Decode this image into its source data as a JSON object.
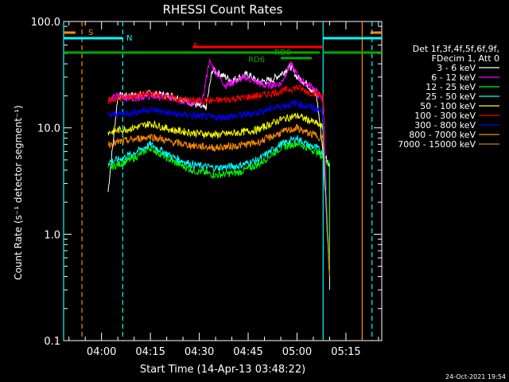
{
  "chart_data": {
    "type": "line",
    "title": "RHESSI Count Rates",
    "xlabel": "Start Time (14-Apr-13 03:48:22)",
    "ylabel": "Count Rate (s⁻¹ detector segment⁻¹)",
    "y_scale": "log",
    "ylim": [
      0.1,
      100
    ],
    "xlim": [
      "03:48:22",
      "05:26:00"
    ],
    "x_ticks": [
      "04:00",
      "04:15",
      "04:30",
      "04:45",
      "05:00",
      "05:15"
    ],
    "y_ticks": [
      "0.1",
      "1.0",
      "10.0",
      "100.0"
    ],
    "timestamp": "24-Oct-2021 19:54",
    "legend": {
      "placement": "right",
      "header": [
        "Det 1f,3f,4f,5f,6f,9f,",
        "FDecim 1, Att 0"
      ]
    },
    "series": [
      {
        "name": "3 - 6 keV",
        "color": "#ffffff",
        "x": [
          "04:02",
          "04:05",
          "04:08",
          "04:15",
          "04:22",
          "04:28",
          "04:32",
          "04:34",
          "04:40",
          "04:45",
          "04:48",
          "04:52",
          "04:55",
          "04:58",
          "05:00",
          "05:03",
          "05:06",
          "05:08",
          "05:10",
          "05:10"
        ],
        "y": [
          2.5,
          20,
          20,
          21,
          20,
          17,
          15,
          35,
          28,
          32,
          27,
          28,
          32,
          38,
          30,
          26,
          20,
          6,
          4.5,
          0.3
        ]
      },
      {
        "name": "6 - 12 keV",
        "color": "#ff00ff",
        "x": [
          "04:02",
          "04:05",
          "04:08",
          "04:15",
          "04:22",
          "04:28",
          "04:31",
          "04:33",
          "04:38",
          "04:44",
          "04:50",
          "04:55",
          "04:58",
          "05:01",
          "05:05",
          "05:08",
          "05:10"
        ],
        "y": [
          18,
          20,
          19,
          20,
          19,
          17,
          18,
          42,
          25,
          30,
          25,
          26,
          40,
          28,
          24,
          18,
          0.4
        ]
      },
      {
        "name": "12 - 25 keV",
        "color": "#00ff00",
        "x": [
          "04:02",
          "04:05",
          "04:10",
          "04:15",
          "04:22",
          "04:28",
          "04:35",
          "04:42",
          "04:48",
          "04:55",
          "05:00",
          "05:03",
          "05:06",
          "05:08",
          "05:10",
          "05:10"
        ],
        "y": [
          4.2,
          4.5,
          5.2,
          6.5,
          4.8,
          4.0,
          3.6,
          3.8,
          4.5,
          6.5,
          7.2,
          6.5,
          6.0,
          5.2,
          4.5,
          0.4
        ]
      },
      {
        "name": "25 - 50 keV",
        "color": "#00ffff",
        "x": [
          "04:02",
          "04:05",
          "04:10",
          "04:15",
          "04:22",
          "04:28",
          "04:35",
          "04:42",
          "04:48",
          "04:55",
          "05:00",
          "05:03",
          "05:06",
          "05:08",
          "05:10"
        ],
        "y": [
          4.8,
          5.0,
          5.8,
          7.0,
          5.3,
          4.5,
          4.2,
          4.4,
          5.0,
          7.0,
          8.0,
          7.0,
          6.5,
          5.8,
          0.4
        ]
      },
      {
        "name": "50 - 100 keV",
        "color": "#ffff00",
        "x": [
          "04:02",
          "04:05",
          "04:10",
          "04:15",
          "04:22",
          "04:28",
          "04:35",
          "04:42",
          "04:48",
          "04:55",
          "05:00",
          "05:03",
          "05:06",
          "05:08",
          "05:10"
        ],
        "y": [
          9.0,
          9.5,
          10.0,
          11.0,
          9.5,
          9.0,
          8.6,
          9.0,
          9.6,
          12.0,
          13.0,
          12.0,
          11.0,
          10.0,
          0.4
        ]
      },
      {
        "name": "100 - 300 keV",
        "color": "#ff0000",
        "x": [
          "04:02",
          "04:05",
          "04:10",
          "04:15",
          "04:22",
          "04:28",
          "04:35",
          "04:42",
          "04:48",
          "04:55",
          "05:00",
          "05:03",
          "05:06",
          "05:08",
          "05:10"
        ],
        "y": [
          18,
          19,
          20,
          21,
          19,
          18,
          18,
          19,
          20,
          22,
          24,
          22,
          21,
          20,
          0.4
        ]
      },
      {
        "name": "300 - 800 keV",
        "color": "#0000ff",
        "x": [
          "04:02",
          "04:05",
          "04:10",
          "04:15",
          "04:22",
          "04:28",
          "04:35",
          "04:42",
          "04:48",
          "04:55",
          "05:00",
          "05:03",
          "05:06",
          "05:08",
          "05:10"
        ],
        "y": [
          13,
          13.5,
          14,
          15,
          13.5,
          13,
          12.5,
          13,
          14,
          16,
          17,
          16,
          15,
          14,
          0.4
        ]
      },
      {
        "name": "800 - 7000 keV",
        "color": "#ff8c00",
        "x": [
          "04:02",
          "04:05",
          "04:10",
          "04:15",
          "04:22",
          "04:28",
          "04:35",
          "04:42",
          "04:48",
          "04:55",
          "05:00",
          "05:03",
          "05:06",
          "05:08",
          "05:10"
        ],
        "y": [
          7.0,
          7.3,
          7.8,
          8.3,
          7.3,
          6.8,
          6.5,
          6.8,
          7.3,
          9.0,
          10.0,
          9.0,
          8.5,
          7.8,
          0.4
        ]
      },
      {
        "name": "7000 - 15000 keV",
        "color": "#b8860b",
        "x": [],
        "y": []
      }
    ],
    "attenuator_bars": [
      {
        "label": "S",
        "color": "#ff8c00",
        "segments": [
          [
            "03:48:22",
            "03:52:00"
          ],
          [
            "05:22:30",
            "05:26:00"
          ]
        ]
      },
      {
        "label": "N",
        "color": "#00ffff",
        "segments": [
          [
            "03:48:22",
            "04:06:30"
          ],
          [
            "05:08:00",
            "05:26:00"
          ]
        ]
      },
      {
        "label": "F",
        "color": "#ff0000",
        "segments": [
          [
            "04:28:00",
            "05:08:00"
          ]
        ]
      },
      {
        "label": "RD0",
        "color": "#00aa00",
        "segments": [
          [
            "03:48:22",
            "05:07:00"
          ],
          [
            "05:08:00",
            "05:26:00"
          ]
        ]
      },
      {
        "label": "RD6",
        "color": "#00aa00",
        "segments": [
          [
            "04:55:00",
            "05:04:30"
          ]
        ]
      }
    ],
    "vlines": [
      {
        "x": "03:48:22",
        "color": "#00ffff",
        "style": "solid"
      },
      {
        "x": "03:54:00",
        "color": "#ff8c00",
        "style": "dashed"
      },
      {
        "x": "04:06:30",
        "color": "#00ffff",
        "style": "dashed"
      },
      {
        "x": "05:08:00",
        "color": "#00ffff",
        "style": "solid"
      },
      {
        "x": "05:20:00",
        "color": "#ff8c00",
        "style": "solid"
      },
      {
        "x": "05:23:00",
        "color": "#00ffff",
        "style": "dashed"
      }
    ]
  }
}
